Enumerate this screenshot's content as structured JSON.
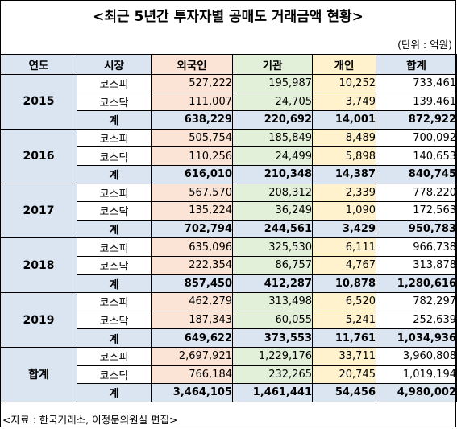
{
  "title": "<최근 5년간 투자자별 공매도 거래금액 현황>",
  "unit": "(단위 : 억원)",
  "headers": {
    "year": "연도",
    "market": "시장",
    "foreign": "외국인",
    "institution": "기관",
    "individual": "개인",
    "total": "합계"
  },
  "groups": [
    {
      "label": "2015",
      "rows": [
        {
          "market": "코스피",
          "foreign": "527,222",
          "institution": "195,987",
          "individual": "10,252",
          "total": "733,461"
        },
        {
          "market": "코스닥",
          "foreign": "111,007",
          "institution": "24,705",
          "individual": "3,749",
          "total": "139,461"
        },
        {
          "market": "계",
          "foreign": "638,229",
          "institution": "220,692",
          "individual": "14,001",
          "total": "872,922"
        }
      ]
    },
    {
      "label": "2016",
      "rows": [
        {
          "market": "코스피",
          "foreign": "505,754",
          "institution": "185,849",
          "individual": "8,489",
          "total": "700,092"
        },
        {
          "market": "코스닥",
          "foreign": "110,256",
          "institution": "24,499",
          "individual": "5,898",
          "total": "140,653"
        },
        {
          "market": "계",
          "foreign": "616,010",
          "institution": "210,348",
          "individual": "14,387",
          "total": "840,745"
        }
      ]
    },
    {
      "label": "2017",
      "rows": [
        {
          "market": "코스피",
          "foreign": "567,570",
          "institution": "208,312",
          "individual": "2,339",
          "total": "778,220"
        },
        {
          "market": "코스닥",
          "foreign": "135,224",
          "institution": "36,249",
          "individual": "1,090",
          "total": "172,563"
        },
        {
          "market": "계",
          "foreign": "702,794",
          "institution": "244,561",
          "individual": "3,429",
          "total": "950,783"
        }
      ]
    },
    {
      "label": "2018",
      "rows": [
        {
          "market": "코스피",
          "foreign": "635,096",
          "institution": "325,530",
          "individual": "6,111",
          "total": "966,738"
        },
        {
          "market": "코스닥",
          "foreign": "222,354",
          "institution": "86,757",
          "individual": "4,767",
          "total": "313,878"
        },
        {
          "market": "계",
          "foreign": "857,450",
          "institution": "412,287",
          "individual": "10,878",
          "total": "1,280,616"
        }
      ]
    },
    {
      "label": "2019",
      "rows": [
        {
          "market": "코스피",
          "foreign": "462,279",
          "institution": "313,498",
          "individual": "6,520",
          "total": "782,297"
        },
        {
          "market": "코스닥",
          "foreign": "187,343",
          "institution": "60,055",
          "individual": "5,241",
          "total": "252,639"
        },
        {
          "market": "계",
          "foreign": "649,622",
          "institution": "373,553",
          "individual": "11,761",
          "total": "1,034,936"
        }
      ]
    },
    {
      "label": "합계",
      "rows": [
        {
          "market": "코스피",
          "foreign": "2,697,921",
          "institution": "1,229,176",
          "individual": "33,711",
          "total": "3,960,808"
        },
        {
          "market": "코스닥",
          "foreign": "766,184",
          "institution": "232,265",
          "individual": "20,745",
          "total": "1,019,194"
        },
        {
          "market": "계",
          "foreign": "3,464,105",
          "institution": "1,461,441",
          "individual": "54,456",
          "total": "4,980,002"
        }
      ]
    }
  ],
  "source": "<자료 : 한국거래소, 이정문의원실 편집>"
}
